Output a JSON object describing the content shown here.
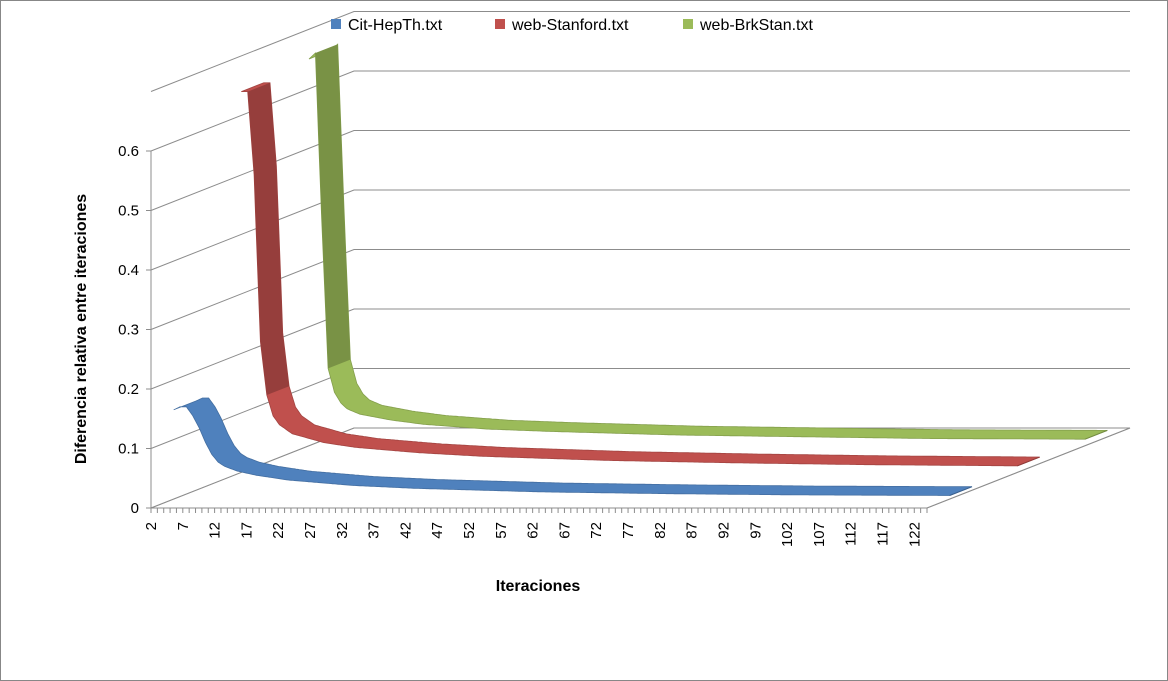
{
  "chart_data": {
    "type": "line",
    "style": "3d-ribbon",
    "title": "",
    "xlabel": "Iteraciones",
    "ylabel": "Diferencia relativa entre iteraciones",
    "ylim": [
      0,
      0.6
    ],
    "yticks": [
      "0",
      "0.1",
      "0.2",
      "0.3",
      "0.4",
      "0.5",
      "0.6"
    ],
    "xticks": [
      "2",
      "7",
      "12",
      "17",
      "22",
      "27",
      "32",
      "37",
      "42",
      "47",
      "52",
      "57",
      "62",
      "67",
      "72",
      "77",
      "82",
      "87",
      "92",
      "97",
      "102",
      "107",
      "112",
      "117",
      "122"
    ],
    "x_range": [
      2,
      124
    ],
    "grid": true,
    "legend_position": "top",
    "series": [
      {
        "name": "Cit-HepTh.txt",
        "color": "#4F81BD",
        "points": [
          [
            2,
            0.15
          ],
          [
            3,
            0.155
          ],
          [
            4,
            0.155
          ],
          [
            5,
            0.14
          ],
          [
            6,
            0.12
          ],
          [
            7,
            0.095
          ],
          [
            8,
            0.075
          ],
          [
            9,
            0.062
          ],
          [
            10,
            0.055
          ],
          [
            12,
            0.047
          ],
          [
            15,
            0.04
          ],
          [
            20,
            0.032
          ],
          [
            30,
            0.023
          ],
          [
            40,
            0.018
          ],
          [
            50,
            0.015
          ],
          [
            60,
            0.012
          ],
          [
            80,
            0.009
          ],
          [
            100,
            0.007
          ],
          [
            124,
            0.006
          ]
        ]
      },
      {
        "name": "web-Stanford.txt",
        "color": "#C0504D",
        "points": [
          [
            2,
            0.64
          ],
          [
            3,
            0.64
          ],
          [
            4,
            0.5
          ],
          [
            5,
            0.22
          ],
          [
            6,
            0.13
          ],
          [
            7,
            0.095
          ],
          [
            8,
            0.08
          ],
          [
            10,
            0.065
          ],
          [
            15,
            0.05
          ],
          [
            20,
            0.042
          ],
          [
            30,
            0.033
          ],
          [
            40,
            0.027
          ],
          [
            60,
            0.02
          ],
          [
            80,
            0.016
          ],
          [
            100,
            0.013
          ],
          [
            124,
            0.011
          ]
        ]
      },
      {
        "name": "web-BrkStan.txt",
        "color": "#9BBB59",
        "points": [
          [
            2,
            0.65
          ],
          [
            3,
            0.66
          ],
          [
            4,
            0.38
          ],
          [
            5,
            0.13
          ],
          [
            6,
            0.09
          ],
          [
            7,
            0.072
          ],
          [
            8,
            0.062
          ],
          [
            10,
            0.053
          ],
          [
            15,
            0.043
          ],
          [
            20,
            0.036
          ],
          [
            30,
            0.028
          ],
          [
            40,
            0.024
          ],
          [
            60,
            0.018
          ],
          [
            80,
            0.015
          ],
          [
            100,
            0.012
          ],
          [
            124,
            0.011
          ]
        ]
      }
    ]
  }
}
